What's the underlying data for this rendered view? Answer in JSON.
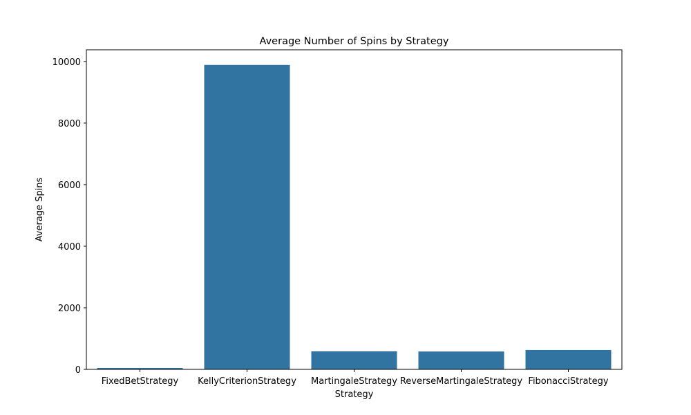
{
  "chart_data": {
    "type": "bar",
    "title": "Average Number of Spins by Strategy",
    "xlabel": "Strategy",
    "ylabel": "Average Spins",
    "categories": [
      "FixedBetStrategy",
      "KellyCriterionStrategy",
      "MartingaleStrategy",
      "ReverseMartingaleStrategy",
      "FibonacciStrategy"
    ],
    "values": [
      45,
      9890,
      585,
      580,
      630
    ],
    "ylim": [
      0,
      10380
    ],
    "yticks": [
      0,
      2000,
      4000,
      6000,
      8000,
      10000
    ],
    "grid": false,
    "legend": "none",
    "colors": {
      "bar": "#3274a1",
      "axis": "#000000",
      "background": "#ffffff"
    }
  }
}
